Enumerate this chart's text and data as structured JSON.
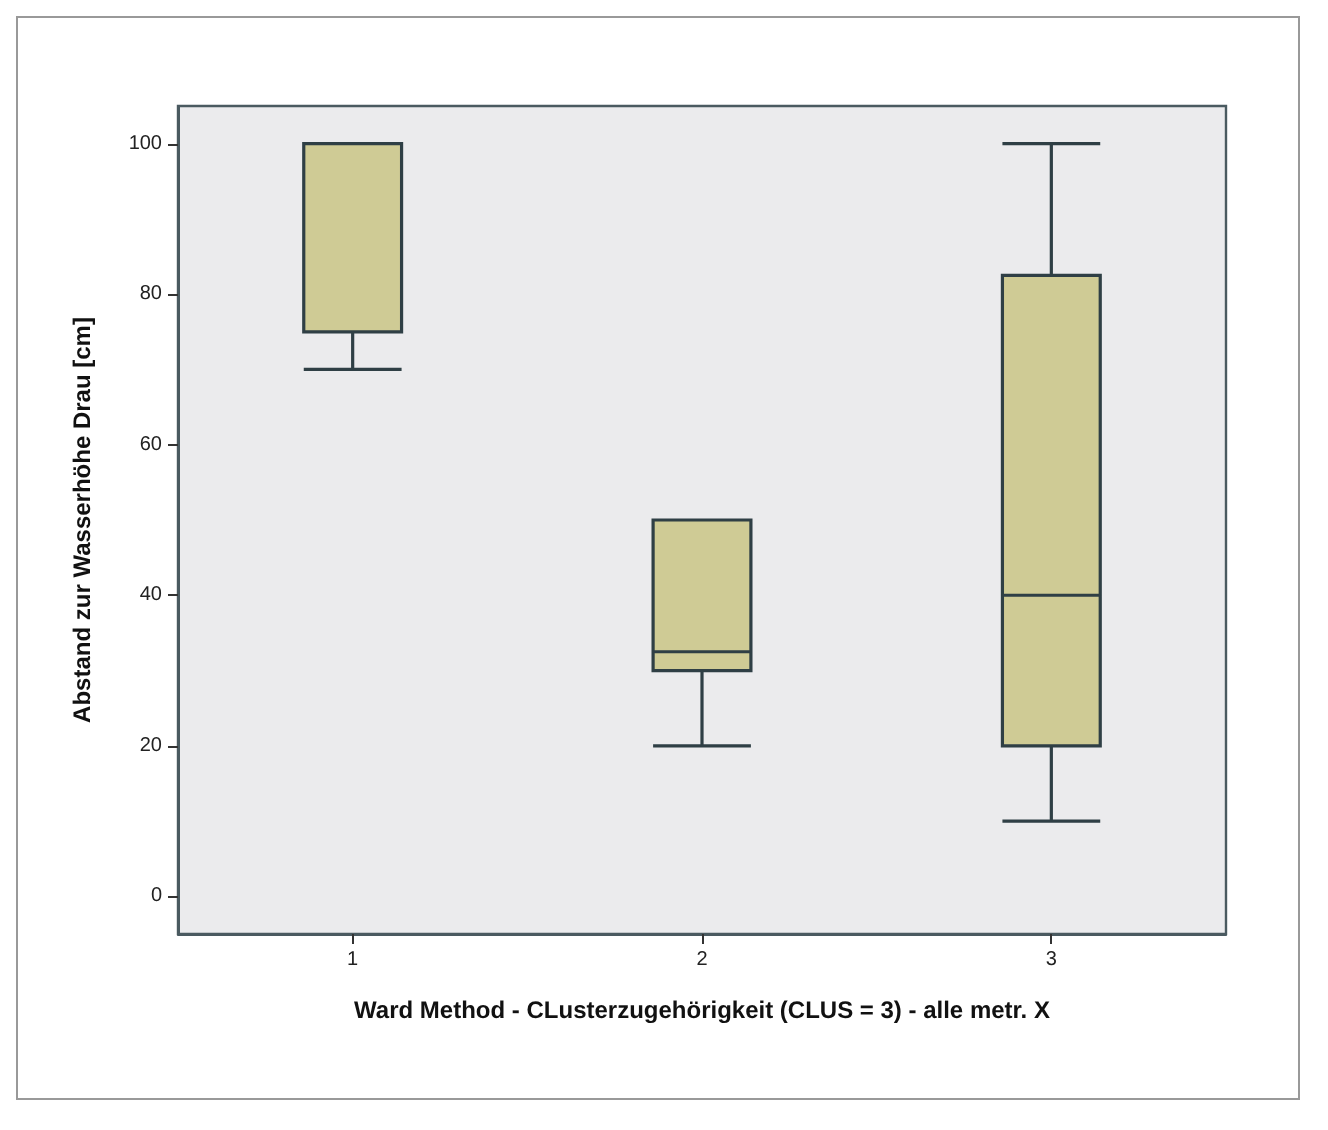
{
  "chart_data": {
    "type": "box",
    "xlabel": "Ward Method - CLusterzugehörigkeit (CLUS = 3) - alle metr. X",
    "ylabel": "Abstand zur Wasserhöhe Drau [cm]",
    "categories": [
      "1",
      "2",
      "3"
    ],
    "boxes": [
      {
        "low": 70,
        "q1": 75,
        "median": 100,
        "q3": 100,
        "high": 100
      },
      {
        "low": 20,
        "q1": 30,
        "median": 32.5,
        "q3": 50,
        "high": 50
      },
      {
        "low": 10,
        "q1": 20,
        "median": 40,
        "q3": 82.5,
        "high": 100
      }
    ],
    "color": "#cfcb95",
    "ylim": [
      -5,
      105
    ],
    "yticks": [
      0,
      20,
      40,
      60,
      80,
      100
    ],
    "grid": false
  }
}
